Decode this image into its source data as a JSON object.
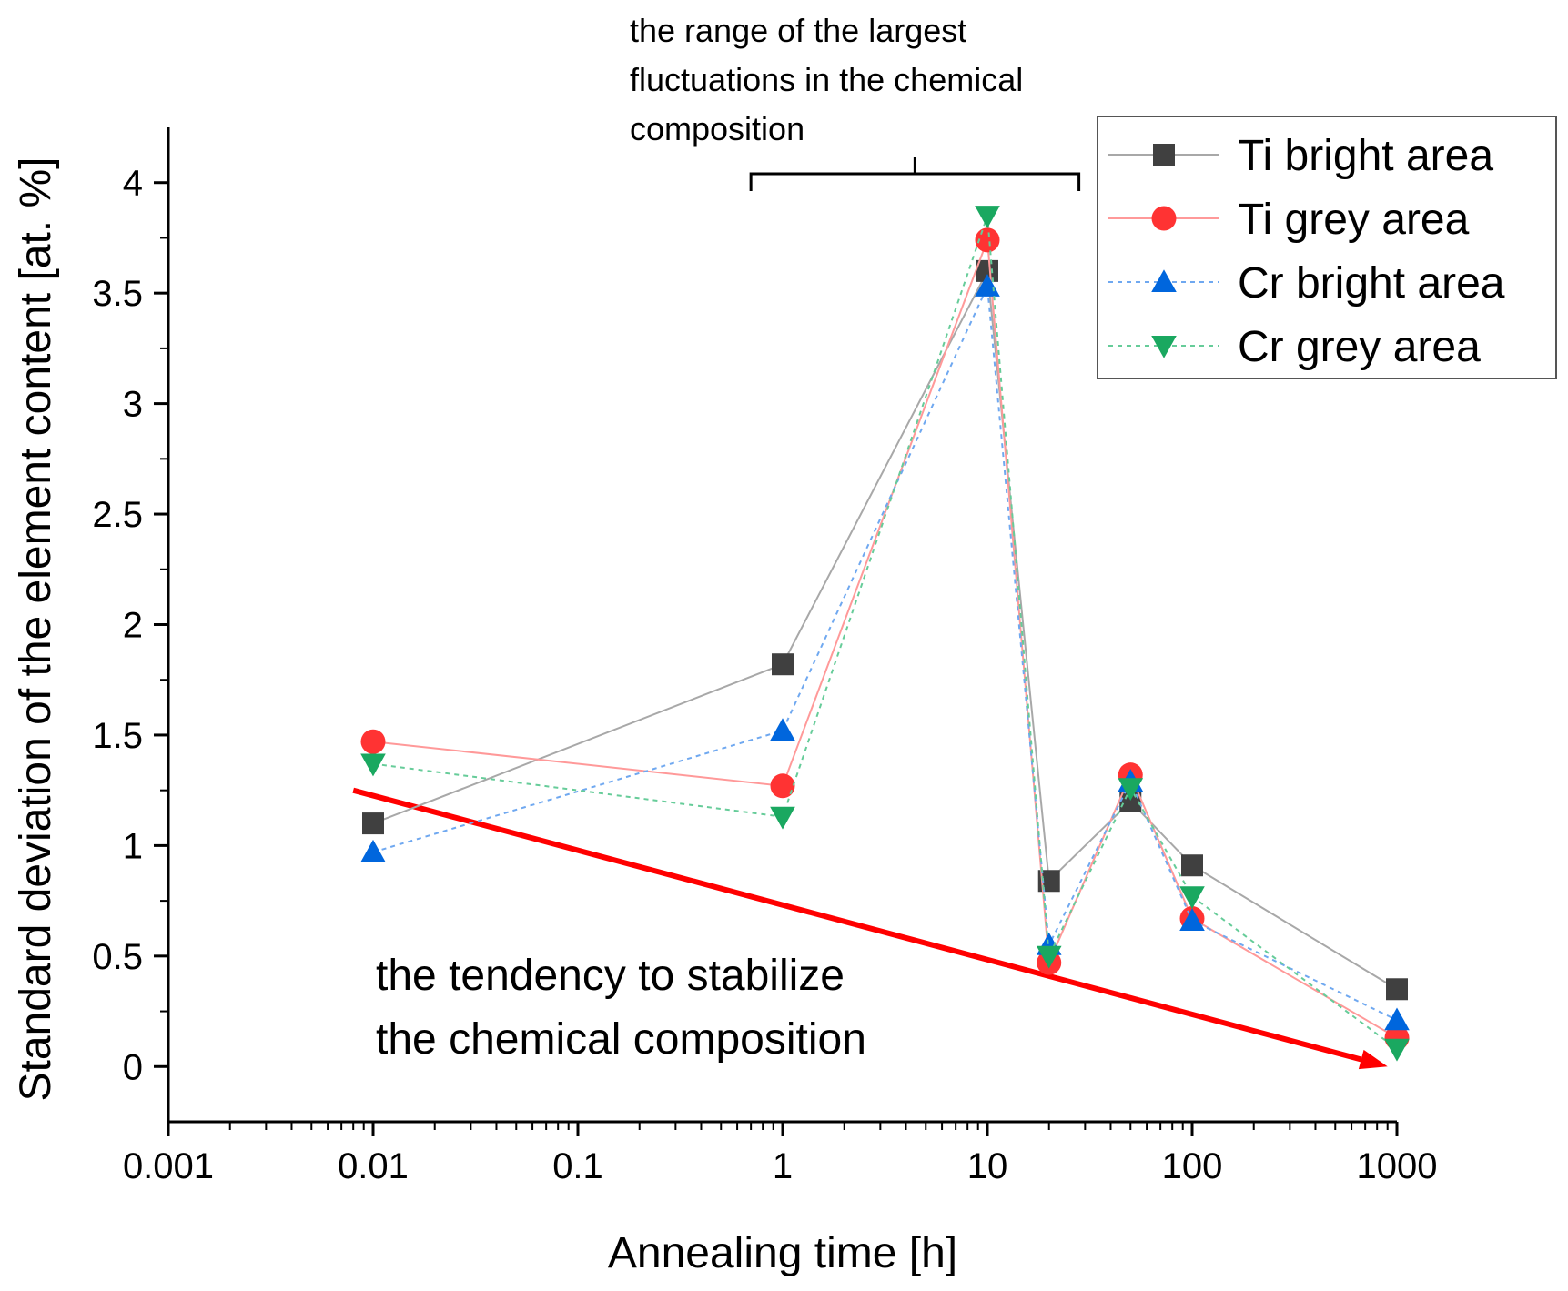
{
  "chart_data": {
    "type": "line",
    "xscale": "log",
    "xlabel": "Annealing time [h]",
    "ylabel": "Standard deviation of the element content [at. %]",
    "xlim": [
      0.001,
      1000
    ],
    "ylim": [
      -0.25,
      4.25
    ],
    "xticks": [
      "0.001",
      "0.01",
      "0.1",
      "1",
      "10",
      "100",
      "1000"
    ],
    "yticks": [
      "0",
      "0.5",
      "1",
      "1.5",
      "2",
      "2.5",
      "3",
      "3.5",
      "4"
    ],
    "x": [
      0.01,
      1,
      10,
      20,
      50,
      100,
      1000
    ],
    "series": [
      {
        "name": "Ti bright area",
        "color": "#404040",
        "line_color": "#a8a8a8",
        "marker": "square",
        "line_style": "solid",
        "values": [
          1.1,
          1.82,
          3.6,
          0.84,
          1.2,
          0.91,
          0.35
        ]
      },
      {
        "name": "Ti grey area",
        "color": "#ff3333",
        "line_color": "#ff9999",
        "marker": "circle",
        "line_style": "solid",
        "values": [
          1.47,
          1.27,
          3.74,
          0.47,
          1.32,
          0.67,
          0.13
        ]
      },
      {
        "name": "Cr bright area",
        "color": "#0066dd",
        "line_color": "#6fa8f0",
        "marker": "triangle-up",
        "line_style": "dotted",
        "values": [
          0.97,
          1.52,
          3.53,
          0.55,
          1.29,
          0.66,
          0.21
        ]
      },
      {
        "name": "Cr grey area",
        "color": "#1aa860",
        "line_color": "#66cc99",
        "marker": "triangle-down",
        "line_style": "dotted",
        "values": [
          1.37,
          1.13,
          3.85,
          0.5,
          1.26,
          0.77,
          0.08
        ]
      }
    ],
    "annotations": {
      "bracket_text": [
        "the range of the largest",
        "fluctuations in the chemical",
        "composition"
      ],
      "bracket_range": [
        0.7,
        28
      ],
      "trend_text": [
        "the tendency to stabilize",
        "the chemical composition"
      ],
      "trend_arrow": {
        "from": [
          0.008,
          1.25
        ],
        "to": [
          900,
          0.0
        ],
        "color": "#ff0000"
      }
    },
    "legend_position": "top-right",
    "grid": false
  }
}
